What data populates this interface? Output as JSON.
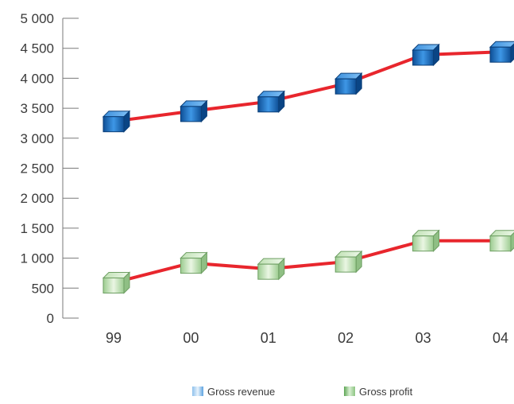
{
  "chart_data": {
    "type": "line",
    "title": "",
    "xlabel": "",
    "ylabel": "",
    "categories": [
      "99",
      "00",
      "01",
      "02",
      "03",
      "04"
    ],
    "ylim": [
      0,
      5000
    ],
    "yticks": [
      0,
      500,
      1000,
      1500,
      2000,
      2500,
      3000,
      3500,
      4000,
      4500,
      5000
    ],
    "ytick_labels": [
      "0",
      "500",
      "1 000",
      "1 500",
      "2 000",
      "2 500",
      "3 000",
      "3 500",
      "4 000",
      "4 500",
      "5 000"
    ],
    "grid": false,
    "legend_position": "bottom-center",
    "line_color": "#e8262d",
    "series": [
      {
        "name": "Gross revenue",
        "values": [
          3280,
          3450,
          3610,
          3910,
          4390,
          4440
        ],
        "marker_color": "#1f79c9",
        "marker_style": "cube"
      },
      {
        "name": "Gross profit",
        "values": [
          590,
          920,
          820,
          940,
          1290,
          1290
        ],
        "marker_color": "#b9ddb0",
        "marker_style": "cube"
      }
    ]
  }
}
